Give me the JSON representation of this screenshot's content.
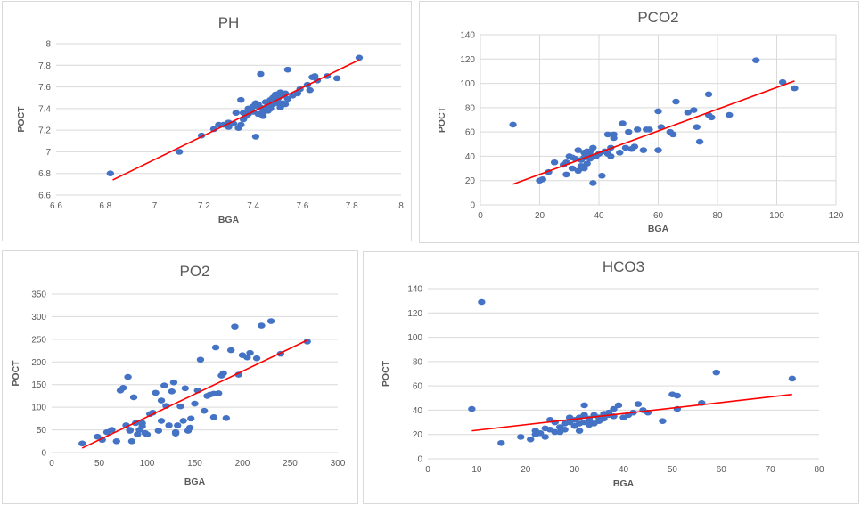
{
  "colors": {
    "points": "#4472c4",
    "trendline": "#ff0000",
    "grid": "#d9d9d9",
    "text": "#595959"
  },
  "chart_data": [
    {
      "type": "scatter",
      "title": "PH",
      "xlabel": "BGA",
      "ylabel": "POCT",
      "xlim": [
        6.6,
        8
      ],
      "ylim": [
        6.6,
        8
      ],
      "xticks": [
        "6.6",
        "6.8",
        "7",
        "7.2",
        "7.4",
        "7.6",
        "7.8",
        "8"
      ],
      "yticks": [
        "6.6",
        "6.8",
        "7",
        "7.2",
        "7.4",
        "7.6",
        "7.8",
        "8"
      ],
      "grid": "horizontal",
      "trendline": {
        "x": [
          6.83,
          7.83
        ],
        "y": [
          6.74,
          7.85
        ]
      },
      "x": [
        6.82,
        7.1,
        7.19,
        7.24,
        7.26,
        7.28,
        7.3,
        7.3,
        7.32,
        7.34,
        7.35,
        7.36,
        7.36,
        7.37,
        7.38,
        7.38,
        7.39,
        7.4,
        7.4,
        7.41,
        7.41,
        7.42,
        7.42,
        7.43,
        7.43,
        7.44,
        7.44,
        7.45,
        7.45,
        7.46,
        7.46,
        7.47,
        7.47,
        7.48,
        7.48,
        7.49,
        7.49,
        7.5,
        7.5,
        7.51,
        7.51,
        7.52,
        7.52,
        7.53,
        7.53,
        7.54,
        7.54,
        7.56,
        7.58,
        7.59,
        7.62,
        7.63,
        7.64,
        7.65,
        7.66,
        7.7,
        7.74,
        7.83,
        7.35,
        7.37,
        7.42,
        7.44,
        7.47,
        7.5,
        7.33,
        7.39
      ],
      "y": [
        6.8,
        7.0,
        7.15,
        7.21,
        7.25,
        7.25,
        7.23,
        7.27,
        7.26,
        7.22,
        7.25,
        7.3,
        7.36,
        7.33,
        7.4,
        7.35,
        7.38,
        7.37,
        7.42,
        7.14,
        7.45,
        7.35,
        7.44,
        7.41,
        7.72,
        7.37,
        7.33,
        7.4,
        7.46,
        7.38,
        7.43,
        7.43,
        7.48,
        7.44,
        7.5,
        7.46,
        7.53,
        7.45,
        7.51,
        7.41,
        7.55,
        7.45,
        7.52,
        7.44,
        7.54,
        7.49,
        7.76,
        7.52,
        7.54,
        7.58,
        7.62,
        7.57,
        7.69,
        7.7,
        7.66,
        7.7,
        7.68,
        7.87,
        7.48,
        7.35,
        7.42,
        7.36,
        7.4,
        7.49,
        7.36,
        7.39
      ]
    },
    {
      "type": "scatter",
      "title": "PCO2",
      "xlabel": "BGA",
      "ylabel": "POCT",
      "xlim": [
        0,
        120
      ],
      "ylim": [
        0,
        140
      ],
      "xticks": [
        "0",
        "20",
        "40",
        "60",
        "80",
        "100",
        "120"
      ],
      "yticks": [
        "0",
        "20",
        "40",
        "60",
        "80",
        "100",
        "120",
        "140"
      ],
      "grid": "both",
      "trendline": {
        "x": [
          11,
          106
        ],
        "y": [
          17,
          102
        ]
      },
      "x": [
        11,
        20,
        21,
        23,
        25,
        28,
        29,
        29,
        30,
        31,
        31,
        32,
        33,
        33,
        34,
        34,
        35,
        35,
        35,
        36,
        36,
        37,
        37,
        37,
        38,
        38,
        39,
        40,
        41,
        42,
        43,
        43,
        44,
        44,
        45,
        45,
        47,
        48,
        49,
        50,
        51,
        52,
        53,
        55,
        56,
        57,
        60,
        60,
        61,
        64,
        65,
        66,
        70,
        72,
        73,
        74,
        77,
        77,
        78,
        84,
        93,
        102,
        106
      ],
      "y": [
        66,
        20,
        21,
        27,
        35,
        33,
        25,
        35,
        40,
        30,
        39,
        38,
        28,
        45,
        32,
        37,
        30,
        39,
        43,
        34,
        44,
        38,
        41,
        44,
        47,
        18,
        40,
        42,
        24,
        44,
        42,
        58,
        40,
        47,
        55,
        58,
        43,
        67,
        47,
        60,
        46,
        48,
        62,
        45,
        62,
        62,
        45,
        77,
        64,
        60,
        58,
        85,
        76,
        78,
        64,
        52,
        74,
        91,
        72,
        74,
        119,
        101,
        96
      ]
    },
    {
      "type": "scatter",
      "title": "PO2",
      "xlabel": "BGA",
      "ylabel": "POCT",
      "xlim": [
        0,
        300
      ],
      "ylim": [
        0,
        350
      ],
      "xticks": [
        "0",
        "50",
        "100",
        "150",
        "200",
        "250",
        "300"
      ],
      "yticks": [
        "0",
        "50",
        "100",
        "150",
        "200",
        "250",
        "300",
        "350"
      ],
      "grid": "horizontal",
      "trendline": {
        "x": [
          32,
          268
        ],
        "y": [
          10,
          248
        ]
      },
      "x": [
        32,
        48,
        53,
        58,
        63,
        68,
        72,
        75,
        78,
        80,
        82,
        84,
        86,
        88,
        90,
        92,
        95,
        98,
        100,
        103,
        106,
        109,
        112,
        115,
        118,
        120,
        123,
        126,
        128,
        130,
        132,
        135,
        138,
        140,
        143,
        146,
        150,
        153,
        156,
        160,
        163,
        166,
        170,
        172,
        175,
        178,
        180,
        183,
        188,
        192,
        196,
        200,
        205,
        208,
        215,
        220,
        230,
        240,
        268,
        82,
        95,
        115,
        130,
        145,
        170
      ],
      "y": [
        20,
        35,
        28,
        45,
        50,
        25,
        137,
        143,
        60,
        167,
        48,
        25,
        122,
        65,
        40,
        50,
        58,
        43,
        40,
        85,
        88,
        132,
        48,
        115,
        148,
        103,
        60,
        135,
        155,
        42,
        60,
        102,
        70,
        142,
        48,
        75,
        108,
        137,
        205,
        92,
        125,
        128,
        78,
        232,
        131,
        170,
        175,
        76,
        226,
        278,
        172,
        215,
        210,
        220,
        208,
        280,
        290,
        218,
        245,
        50,
        65,
        70,
        45,
        55,
        130
      ]
    },
    {
      "type": "scatter",
      "title": "HCO3",
      "xlabel": "BGA",
      "ylabel": "POCT",
      "xlim": [
        0,
        80
      ],
      "ylim": [
        0,
        140
      ],
      "xticks": [
        "0",
        "10",
        "20",
        "30",
        "40",
        "50",
        "60",
        "70",
        "80"
      ],
      "yticks": [
        "0",
        "20",
        "40",
        "60",
        "80",
        "100",
        "120",
        "140"
      ],
      "grid": "horizontal",
      "trendline": {
        "x": [
          9,
          74.5
        ],
        "y": [
          23,
          53
        ]
      },
      "x": [
        9,
        11,
        15,
        19,
        21,
        22,
        22,
        23,
        24,
        24,
        25,
        25,
        26,
        26,
        27,
        27,
        28,
        28,
        29,
        29,
        30,
        30,
        31,
        31,
        31,
        32,
        32,
        32,
        33,
        33,
        33,
        34,
        34,
        35,
        35,
        36,
        36,
        37,
        37,
        38,
        38,
        39,
        40,
        41,
        42,
        43,
        44,
        45,
        48,
        50,
        51,
        51,
        56,
        59,
        74.5
      ],
      "y": [
        41,
        129,
        13,
        18,
        16,
        20,
        23,
        21,
        25,
        18,
        32,
        24,
        30,
        22,
        22,
        26,
        24,
        29,
        30,
        34,
        27,
        32,
        29,
        34,
        23,
        44,
        30,
        36,
        28,
        33,
        31,
        36,
        29,
        34,
        31,
        33,
        37,
        38,
        36,
        41,
        35,
        44,
        34,
        36,
        38,
        45,
        40,
        38,
        31,
        53,
        41,
        52,
        46,
        71,
        66
      ]
    }
  ]
}
